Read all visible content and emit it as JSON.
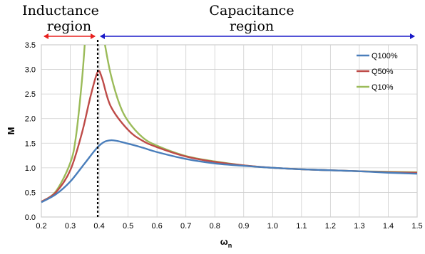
{
  "chart_data": {
    "type": "line",
    "title": "",
    "xlabel": "ω",
    "xlabel_sub": "n",
    "ylabel": "M",
    "xlim": [
      0.2,
      1.5
    ],
    "ylim": [
      0,
      3.5
    ],
    "x_ticks": [
      "0.2",
      "0.3",
      "0.4",
      "0.5",
      "0.6",
      "0.7",
      "0.8",
      "0.9",
      "1.0",
      "1.1",
      "1.2",
      "1.3",
      "1.4",
      "1.5"
    ],
    "y_ticks": [
      "0.0",
      "0.5",
      "1.0",
      "1.5",
      "2.0",
      "2.5",
      "3.0",
      "3.5"
    ],
    "grid": true,
    "legend_position": "top-right",
    "divider_x": 0.395,
    "regions": [
      {
        "label_line1": "Inductance",
        "label_line2": "region",
        "from": 0.2,
        "to": 0.395,
        "color": "#e8201e"
      },
      {
        "label_line1": "Capacitance",
        "label_line2": "region",
        "from": 0.395,
        "to": 1.5,
        "color": "#1a1ac8"
      }
    ],
    "series": [
      {
        "name": "Q100%",
        "color": "#4a7ebb",
        "points": [
          [
            0.2,
            0.3
          ],
          [
            0.25,
            0.46
          ],
          [
            0.3,
            0.72
          ],
          [
            0.35,
            1.09
          ],
          [
            0.4,
            1.45
          ],
          [
            0.44,
            1.56
          ],
          [
            0.5,
            1.49
          ],
          [
            0.55,
            1.41
          ],
          [
            0.6,
            1.32
          ],
          [
            0.7,
            1.18
          ],
          [
            0.8,
            1.09
          ],
          [
            0.9,
            1.04
          ],
          [
            1.0,
            1.0
          ],
          [
            1.1,
            0.97
          ],
          [
            1.2,
            0.95
          ],
          [
            1.3,
            0.93
          ],
          [
            1.4,
            0.9
          ],
          [
            1.5,
            0.88
          ]
        ]
      },
      {
        "name": "Q50%",
        "color": "#be4b48",
        "points": [
          [
            0.2,
            0.31
          ],
          [
            0.25,
            0.5
          ],
          [
            0.3,
            0.95
          ],
          [
            0.34,
            1.7
          ],
          [
            0.37,
            2.45
          ],
          [
            0.395,
            2.95
          ],
          [
            0.41,
            2.82
          ],
          [
            0.44,
            2.25
          ],
          [
            0.5,
            1.77
          ],
          [
            0.55,
            1.55
          ],
          [
            0.6,
            1.42
          ],
          [
            0.7,
            1.23
          ],
          [
            0.8,
            1.12
          ],
          [
            0.9,
            1.05
          ],
          [
            1.0,
            1.0
          ],
          [
            1.1,
            0.97
          ],
          [
            1.2,
            0.95
          ],
          [
            1.3,
            0.93
          ],
          [
            1.4,
            0.91
          ],
          [
            1.5,
            0.9
          ]
        ]
      },
      {
        "name": "Q10%",
        "color": "#9bbb59",
        "points": [
          [
            0.2,
            0.31
          ],
          [
            0.25,
            0.52
          ],
          [
            0.3,
            1.1
          ],
          [
            0.32,
            1.65
          ],
          [
            0.34,
            2.75
          ],
          [
            0.35,
            3.5
          ]
        ],
        "points2": [
          [
            0.42,
            3.5
          ],
          [
            0.44,
            2.9
          ],
          [
            0.47,
            2.3
          ],
          [
            0.5,
            1.95
          ],
          [
            0.55,
            1.62
          ],
          [
            0.6,
            1.45
          ],
          [
            0.7,
            1.24
          ],
          [
            0.8,
            1.13
          ],
          [
            0.9,
            1.05
          ],
          [
            1.0,
            1.0
          ],
          [
            1.1,
            0.97
          ],
          [
            1.2,
            0.95
          ],
          [
            1.3,
            0.93
          ],
          [
            1.4,
            0.92
          ],
          [
            1.5,
            0.91
          ]
        ]
      }
    ]
  }
}
